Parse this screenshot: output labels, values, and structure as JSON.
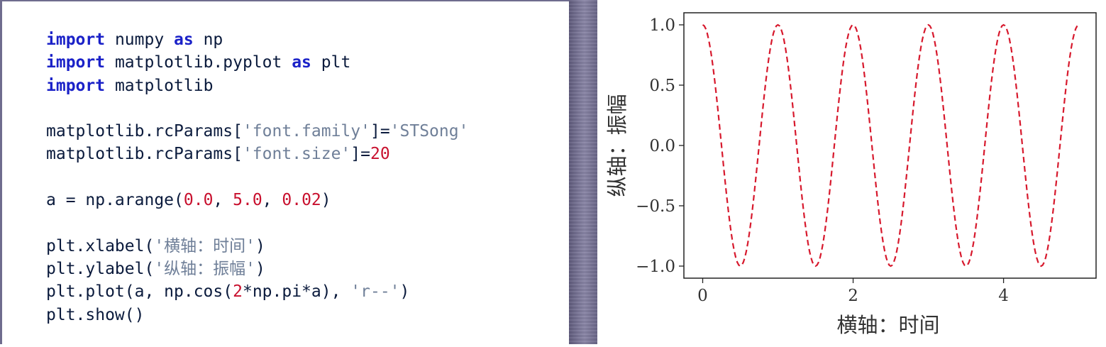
{
  "code": {
    "lines": [
      [
        {
          "t": "import",
          "c": "kw"
        },
        {
          "t": " numpy ",
          "c": "id"
        },
        {
          "t": "as",
          "c": "kw"
        },
        {
          "t": " np",
          "c": "id"
        }
      ],
      [
        {
          "t": "import",
          "c": "kw"
        },
        {
          "t": " matplotlib.pyplot ",
          "c": "id"
        },
        {
          "t": "as",
          "c": "kw"
        },
        {
          "t": " plt",
          "c": "id"
        }
      ],
      [
        {
          "t": "import",
          "c": "kw"
        },
        {
          "t": " matplotlib",
          "c": "id"
        }
      ],
      [],
      [
        {
          "t": "matplotlib.rcParams[",
          "c": "id"
        },
        {
          "t": "'font.family'",
          "c": "str"
        },
        {
          "t": "]=",
          "c": "id"
        },
        {
          "t": "'STSong'",
          "c": "str"
        }
      ],
      [
        {
          "t": "matplotlib.rcParams[",
          "c": "id"
        },
        {
          "t": "'font.size'",
          "c": "str"
        },
        {
          "t": "]=",
          "c": "id"
        },
        {
          "t": "20",
          "c": "num"
        }
      ],
      [],
      [
        {
          "t": "a = np.arange(",
          "c": "id"
        },
        {
          "t": "0.0",
          "c": "num"
        },
        {
          "t": ", ",
          "c": "id"
        },
        {
          "t": "5.0",
          "c": "num"
        },
        {
          "t": ", ",
          "c": "id"
        },
        {
          "t": "0.02",
          "c": "num"
        },
        {
          "t": ")",
          "c": "id"
        }
      ],
      [],
      [
        {
          "t": "plt.xlabel(",
          "c": "id"
        },
        {
          "t": "'横轴：时间'",
          "c": "str"
        },
        {
          "t": ")",
          "c": "id"
        }
      ],
      [
        {
          "t": "plt.ylabel(",
          "c": "id"
        },
        {
          "t": "'纵轴：振幅'",
          "c": "str"
        },
        {
          "t": ")",
          "c": "id"
        }
      ],
      [
        {
          "t": "plt.plot(a, np.cos(",
          "c": "id"
        },
        {
          "t": "2",
          "c": "num"
        },
        {
          "t": "*np.pi*a), ",
          "c": "id"
        },
        {
          "t": "'r--'",
          "c": "str"
        },
        {
          "t": ")",
          "c": "id"
        }
      ],
      [
        {
          "t": "plt.show()",
          "c": "id"
        }
      ]
    ]
  },
  "colors": {
    "keyword": "#1b22c8",
    "string": "#6f7f98",
    "number": "#c8102e",
    "identifier": "#0a1a3c",
    "line": "#d7192d",
    "divider": "#6f6c8e"
  },
  "chart_data": {
    "type": "line",
    "title": "",
    "xlabel": "横轴：时间",
    "ylabel": "纵轴：振幅",
    "function": "cos(2*pi*x)",
    "x_range": [
      0.0,
      4.98
    ],
    "x_step": 0.02,
    "xlim": [
      -0.25,
      5.23
    ],
    "ylim": [
      -1.1,
      1.1
    ],
    "xticks": [
      0,
      2,
      4
    ],
    "xtick_labels": [
      "0",
      "2",
      "4"
    ],
    "yticks": [
      1.0,
      0.5,
      0.0,
      -0.5,
      -1.0
    ],
    "ytick_labels": [
      "1.0",
      "0.5",
      "0.0",
      "−0.5",
      "−1.0"
    ],
    "series": [
      {
        "line_style": "r--",
        "color": "#d7192d",
        "dashed": true
      }
    ],
    "grid": false,
    "legend": "none"
  }
}
